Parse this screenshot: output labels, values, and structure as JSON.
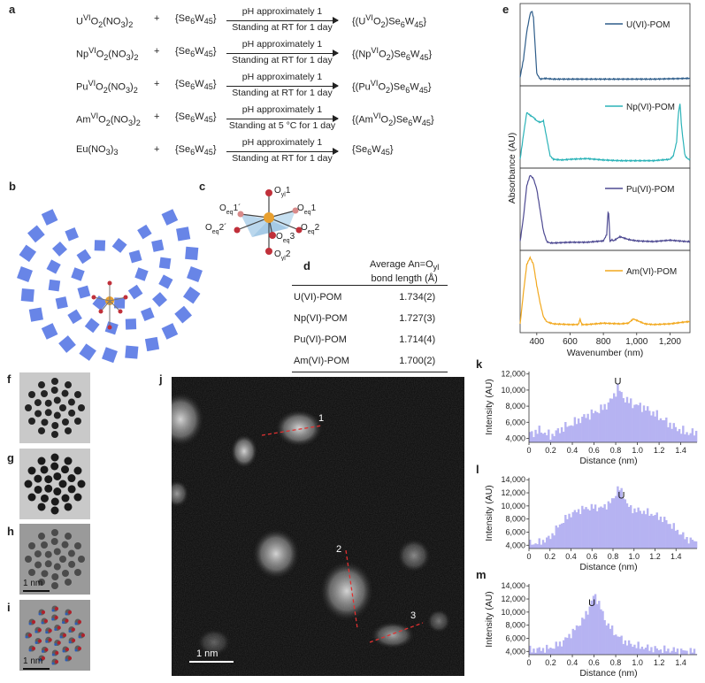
{
  "panel_labels": {
    "a": "a",
    "b": "b",
    "c": "c",
    "d": "d",
    "e": "e",
    "f": "f",
    "g": "g",
    "h": "h",
    "i": "i",
    "j": "j",
    "k": "k",
    "l": "l",
    "m": "m"
  },
  "reactions": [
    {
      "reactant": "U<sup>VI</sup>O<sub>2</sub>(NO<sub>3</sub>)<sub>2</sub>",
      "plus": "+",
      "reagent": "{Se<sub>6</sub>W<sub>45</sub>}",
      "cond_top": "pH approximately 1",
      "cond_bottom": "Standing at RT for 1 day",
      "product": "{(U<sup>VI</sup>O<sub>2</sub>)Se<sub>6</sub>W<sub>45</sub>}"
    },
    {
      "reactant": "Np<sup>VI</sup>O<sub>2</sub>(NO<sub>3</sub>)<sub>2</sub>",
      "plus": "+",
      "reagent": "{Se<sub>6</sub>W<sub>45</sub>}",
      "cond_top": "pH approximately 1",
      "cond_bottom": "Standing at RT for 1 day",
      "product": "{(Np<sup>VI</sup>O<sub>2</sub>)Se<sub>6</sub>W<sub>45</sub>}"
    },
    {
      "reactant": "Pu<sup>VI</sup>O<sub>2</sub>(NO<sub>3</sub>)<sub>2</sub>",
      "plus": "+",
      "reagent": "{Se<sub>6</sub>W<sub>45</sub>}",
      "cond_top": "pH approximately 1",
      "cond_bottom": "Standing at RT for 1 day",
      "product": "{(Pu<sup>VI</sup>O<sub>2</sub>)Se<sub>6</sub>W<sub>45</sub>}"
    },
    {
      "reactant": "Am<sup>VI</sup>O<sub>2</sub>(NO<sub>3</sub>)<sub>2</sub>",
      "plus": "+",
      "reagent": "{Se<sub>6</sub>W<sub>45</sub>}",
      "cond_top": "pH approximately 1",
      "cond_bottom": "Standing at 5 °C for 1 day",
      "product": "{(Am<sup>VI</sup>O<sub>2</sub>)Se<sub>6</sub>W<sub>45</sub>}"
    },
    {
      "reactant": "Eu(NO<sub>3</sub>)<sub>3</sub>",
      "plus": "+",
      "reagent": "{Se<sub>6</sub>W<sub>45</sub>}",
      "cond_top": "pH approximately 1",
      "cond_bottom": "Standing at RT for 1 day",
      "product": "{Se<sub>6</sub>W<sub>45</sub>}"
    }
  ],
  "structure_c": {
    "labels": [
      "O<tspan baseline-shift='sub' font-size='7'>yl</tspan>1",
      "O<tspan baseline-shift='sub' font-size='7'>eq</tspan>1´",
      "O<tspan baseline-shift='sub' font-size='7'>eq</tspan>1",
      "O<tspan baseline-shift='sub' font-size='7'>eq</tspan>2´",
      "O<tspan baseline-shift='sub' font-size='7'>eq</tspan>3",
      "O<tspan baseline-shift='sub' font-size='7'>eq</tspan>2",
      "O<tspan baseline-shift='sub' font-size='7'>yl</tspan>2"
    ]
  },
  "table_d": {
    "header_line1": "Average An=O<sub>yl</sub>",
    "header_line2": "bond length (Å)",
    "rows": [
      [
        "U(VI)-POM",
        "1.734(2)"
      ],
      [
        "Np(VI)-POM",
        "1.727(3)"
      ],
      [
        "Pu(VI)-POM",
        "1.714(4)"
      ],
      [
        "Am(VI)-POM",
        "1.700(2)"
      ]
    ]
  },
  "scalebars": {
    "h": "1 nm",
    "i": "1 nm",
    "j": "1 nm"
  },
  "stem_markers": [
    "1",
    "2",
    "3"
  ],
  "colors": {
    "u": "#2e5d8a",
    "np": "#2bb3b8",
    "pu": "#4e4a92",
    "am": "#f2a81d",
    "hist": "#b6b3f2",
    "polyhedra": "#3d63e0"
  },
  "chart_data": [
    {
      "type": "line",
      "panel": "e",
      "title": "",
      "xlabel": "Wavenumber (nm)",
      "ylabel": "Absorbance (AU)",
      "xlim": [
        300,
        1320
      ],
      "xticks": [
        400,
        600,
        800,
        1000,
        1200
      ],
      "xtick_labels": [
        "400",
        "600",
        "800",
        "1,000",
        "1,200"
      ],
      "series": [
        {
          "name": "U(VI)-POM",
          "x": [
            300,
            320,
            340,
            360,
            370,
            380,
            390,
            400,
            420,
            450,
            500,
            700,
            900,
            1100,
            1300
          ],
          "y": [
            0.05,
            0.3,
            0.7,
            0.95,
            1.0,
            0.9,
            0.5,
            0.1,
            0.02,
            0.03,
            0.02,
            0.02,
            0.02,
            0.02,
            0.03
          ]
        },
        {
          "name": "Np(VI)-POM",
          "x": [
            300,
            320,
            340,
            360,
            380,
            400,
            420,
            440,
            460,
            480,
            500,
            550,
            600,
            700,
            800,
            900,
            1000,
            1100,
            1200,
            1220,
            1240,
            1250,
            1260,
            1270,
            1290,
            1310
          ],
          "y": [
            0.05,
            0.4,
            0.72,
            0.68,
            0.65,
            0.6,
            0.58,
            0.6,
            0.35,
            0.1,
            0.05,
            0.04,
            0.05,
            0.06,
            0.04,
            0.03,
            0.03,
            0.03,
            0.05,
            0.1,
            0.3,
            0.7,
            0.85,
            0.5,
            0.1,
            0.05
          ]
        },
        {
          "name": "Pu(VI)-POM",
          "x": [
            300,
            320,
            340,
            360,
            380,
            400,
            420,
            440,
            460,
            480,
            500,
            600,
            700,
            800,
            820,
            830,
            840,
            850,
            860,
            900,
            950,
            1000,
            1100,
            1200,
            1300
          ],
          "y": [
            0.05,
            0.4,
            0.85,
            1.0,
            0.95,
            0.8,
            0.5,
            0.2,
            0.05,
            0.03,
            0.03,
            0.04,
            0.04,
            0.06,
            0.15,
            0.55,
            0.05,
            0.08,
            0.06,
            0.12,
            0.08,
            0.06,
            0.05,
            0.07,
            0.05
          ]
        },
        {
          "name": "Am(VI)-POM",
          "x": [
            300,
            320,
            340,
            360,
            380,
            400,
            420,
            440,
            460,
            500,
            600,
            650,
            660,
            670,
            700,
            800,
            900,
            950,
            980,
            1000,
            1050,
            1100,
            1200,
            1300
          ],
          "y": [
            0.05,
            0.5,
            0.9,
            1.0,
            0.9,
            0.6,
            0.35,
            0.15,
            0.08,
            0.05,
            0.04,
            0.04,
            0.12,
            0.04,
            0.04,
            0.06,
            0.05,
            0.06,
            0.12,
            0.1,
            0.05,
            0.04,
            0.05,
            0.08
          ]
        }
      ]
    },
    {
      "type": "bar",
      "panel": "k",
      "xlabel": "Distance (nm)",
      "ylabel": "Intensity (AU)",
      "xlim": [
        0,
        1.55
      ],
      "ylim": [
        3500,
        12300
      ],
      "yticks": [
        4000,
        6000,
        8000,
        10000,
        12000
      ],
      "ytick_labels": [
        "4,000",
        "6,000",
        "8,000",
        "10,000",
        "12,000"
      ],
      "xticks": [
        0,
        0.2,
        0.4,
        0.6,
        0.8,
        1.0,
        1.2,
        1.4
      ],
      "xtick_labels": [
        "0",
        "0.2",
        "0.4",
        "0.6",
        "0.8",
        "1.0",
        "1.2",
        "1.4"
      ],
      "annotation": {
        "text": "U",
        "x": 0.82,
        "y": 10700
      },
      "profile_x": [
        0,
        0.1,
        0.2,
        0.3,
        0.4,
        0.5,
        0.6,
        0.7,
        0.78,
        0.82,
        0.86,
        0.95,
        1.05,
        1.15,
        1.25,
        1.35,
        1.45
      ],
      "profile_y": [
        4500,
        5000,
        4300,
        5200,
        5800,
        6600,
        7200,
        7900,
        9200,
        10500,
        9200,
        8300,
        7900,
        7100,
        6200,
        5300,
        4700
      ]
    },
    {
      "type": "bar",
      "panel": "l",
      "xlabel": "Distance (nm)",
      "ylabel": "Intensity (AU)",
      "xlim": [
        0,
        1.6
      ],
      "ylim": [
        3500,
        14300
      ],
      "yticks": [
        4000,
        6000,
        8000,
        10000,
        12000,
        14000
      ],
      "ytick_labels": [
        "4,000",
        "6,000",
        "8,000",
        "10,000",
        "12,000",
        "14,000"
      ],
      "xticks": [
        0,
        0.2,
        0.4,
        0.6,
        0.8,
        1.0,
        1.2,
        1.4
      ],
      "xtick_labels": [
        "0",
        "0.2",
        "0.4",
        "0.6",
        "0.8",
        "1.0",
        "1.2",
        "1.4"
      ],
      "annotation": {
        "text": "U",
        "x": 0.88,
        "y": 11100
      },
      "profile_x": [
        0,
        0.1,
        0.2,
        0.3,
        0.4,
        0.5,
        0.6,
        0.7,
        0.8,
        0.85,
        0.9,
        0.95,
        1.0,
        1.1,
        1.2,
        1.3,
        1.4,
        1.5,
        1.6
      ],
      "profile_y": [
        4200,
        4400,
        5200,
        7300,
        8800,
        9500,
        9800,
        9700,
        10900,
        12900,
        11600,
        9800,
        9400,
        9100,
        8600,
        7800,
        6400,
        5000,
        4500
      ]
    },
    {
      "type": "bar",
      "panel": "m",
      "xlabel": "Distance (nm)",
      "ylabel": "Intensity (AU)",
      "xlim": [
        0,
        1.55
      ],
      "ylim": [
        3500,
        14300
      ],
      "yticks": [
        4000,
        6000,
        8000,
        10000,
        12000,
        14000
      ],
      "ytick_labels": [
        "4,000",
        "6,000",
        "8,000",
        "10,000",
        "12,000",
        "14,000"
      ],
      "xticks": [
        0,
        0.2,
        0.4,
        0.6,
        0.8,
        1.0,
        1.2,
        1.4
      ],
      "xtick_labels": [
        "0",
        "0.2",
        "0.4",
        "0.6",
        "0.8",
        "1.0",
        "1.2",
        "1.4"
      ],
      "annotation": {
        "text": "U",
        "x": 0.58,
        "y": 10900
      },
      "profile_x": [
        0,
        0.1,
        0.2,
        0.3,
        0.4,
        0.5,
        0.55,
        0.6,
        0.65,
        0.7,
        0.8,
        0.9,
        1.0,
        1.1,
        1.2,
        1.3,
        1.4,
        1.5
      ],
      "profile_y": [
        4200,
        4300,
        4500,
        5300,
        6900,
        8900,
        10400,
        12700,
        11300,
        8700,
        6600,
        5300,
        4800,
        4500,
        4300,
        4200,
        4100,
        4000
      ]
    }
  ]
}
